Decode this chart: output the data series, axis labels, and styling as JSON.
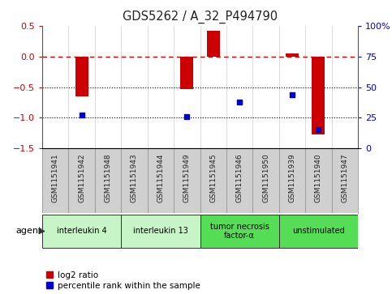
{
  "title": "GDS5262 / A_32_P494790",
  "samples": [
    "GSM1151941",
    "GSM1151942",
    "GSM1151948",
    "GSM1151943",
    "GSM1151944",
    "GSM1151949",
    "GSM1151945",
    "GSM1151946",
    "GSM1151950",
    "GSM1151939",
    "GSM1151940",
    "GSM1151947"
  ],
  "log2_ratio": [
    0.0,
    -0.65,
    0.0,
    0.0,
    0.0,
    -0.53,
    0.42,
    0.0,
    0.0,
    0.05,
    -1.27,
    0.0
  ],
  "percentile_rank": [
    null,
    27,
    null,
    null,
    null,
    26,
    null,
    38,
    null,
    44,
    15,
    null
  ],
  "groups": [
    {
      "label": "interleukin 4",
      "start": 0,
      "end": 2,
      "color": "#c8f5c8"
    },
    {
      "label": "interleukin 13",
      "start": 3,
      "end": 5,
      "color": "#c8f5c8"
    },
    {
      "label": "tumor necrosis\nfactor-α",
      "start": 6,
      "end": 8,
      "color": "#55dd55"
    },
    {
      "label": "unstimulated",
      "start": 9,
      "end": 11,
      "color": "#55dd55"
    }
  ],
  "ylim_left": [
    -1.5,
    0.5
  ],
  "ylim_right": [
    0,
    100
  ],
  "bar_color": "#cc0000",
  "dot_color": "#0000cc",
  "ref_line_color": "#cc0000",
  "dotted_line_color": "#000000",
  "bg_color": "#ffffff",
  "plot_bg_color": "#ffffff",
  "sample_panel_color": "#d0d0d0",
  "bar_width": 0.5,
  "dot_size": 25
}
